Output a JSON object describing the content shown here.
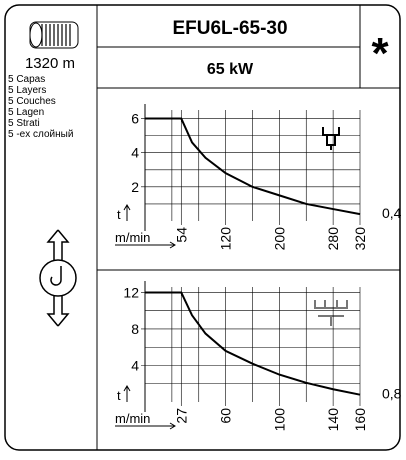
{
  "header": {
    "title": "EFU6L-65-30",
    "power": "65 kW",
    "symbol": "*",
    "rope_length": "1320 m",
    "layers": [
      "5 Capas",
      "5 Layers",
      "5 Couches",
      "5 Lagen",
      "5 Strati",
      "5 -ex слойный"
    ]
  },
  "chart_data": [
    {
      "type": "line",
      "x_label": "m/min",
      "y_label": "t",
      "end_label": "0,4",
      "x": [
        0,
        54,
        70,
        90,
        120,
        160,
        200,
        240,
        280,
        320
      ],
      "series": [
        {
          "color": "#000000",
          "values": [
            6,
            6,
            4.6,
            3.7,
            2.8,
            2.0,
            1.5,
            1.0,
            0.7,
            0.4
          ]
        }
      ],
      "xlim": [
        0,
        320
      ],
      "xticks": [
        54,
        120,
        200,
        280,
        320
      ],
      "minor_xticks": [
        40,
        80,
        160,
        240
      ],
      "ylim": [
        0,
        6.5
      ],
      "yticks": [
        2,
        4,
        6
      ],
      "minor_yticks": [
        1,
        3,
        5
      ],
      "grid": true
    },
    {
      "type": "line",
      "x_label": "m/min",
      "y_label": "t",
      "end_label": "0,8",
      "x": [
        0,
        27,
        35,
        45,
        60,
        80,
        100,
        120,
        140,
        160
      ],
      "series": [
        {
          "color": "#000000",
          "values": [
            12,
            12,
            9.5,
            7.5,
            5.6,
            4.2,
            3.0,
            2.1,
            1.4,
            0.8
          ]
        }
      ],
      "xlim": [
        0,
        160
      ],
      "xticks": [
        27,
        60,
        100,
        140,
        160
      ],
      "minor_xticks": [
        20,
        40,
        80,
        120
      ],
      "ylim": [
        0,
        12.6
      ],
      "yticks": [
        4,
        8,
        12
      ],
      "minor_yticks": [
        2,
        6,
        10
      ],
      "grid": true
    }
  ]
}
